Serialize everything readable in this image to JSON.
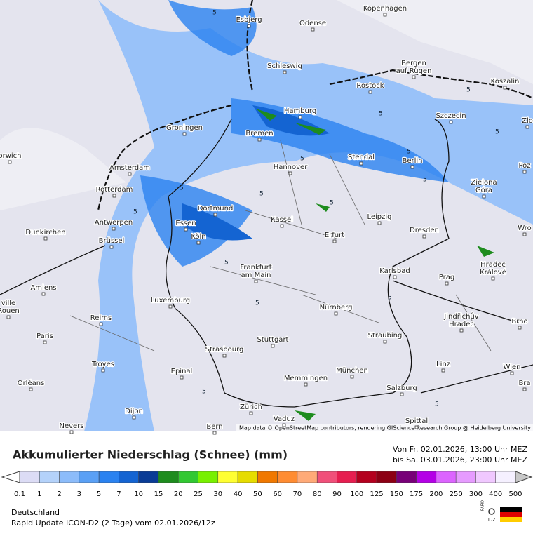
{
  "map": {
    "cities": [
      {
        "name": [
          "Esbjerg"
        ]
      },
      {
        "name": [
          "Odense"
        ]
      },
      {
        "name": [
          "Kopenhagen"
        ]
      },
      {
        "name": [
          "Schleswig"
        ]
      },
      {
        "name": [
          "Bergen",
          "auf Rügen"
        ]
      },
      {
        "name": [
          "Rostock"
        ]
      },
      {
        "name": [
          "Koszalin"
        ]
      },
      {
        "name": [
          "Hamburg"
        ]
      },
      {
        "name": [
          "Szczecin"
        ]
      },
      {
        "name": [
          "Groningen"
        ]
      },
      {
        "name": [
          "Bremen"
        ]
      },
      {
        "name": [
          "orwich"
        ]
      },
      {
        "name": [
          "Amsterdam"
        ]
      },
      {
        "name": [
          "Hannover"
        ]
      },
      {
        "name": [
          "Stendal"
        ]
      },
      {
        "name": [
          "Berlin"
        ]
      },
      {
        "name": [
          "Poz"
        ]
      },
      {
        "name": [
          "Zielona",
          "Góra"
        ]
      },
      {
        "name": [
          "Rotterdam"
        ]
      },
      {
        "name": [
          "Dortmund"
        ]
      },
      {
        "name": [
          "Leipzig"
        ]
      },
      {
        "name": [
          "Kassel"
        ]
      },
      {
        "name": [
          "Antwerpen"
        ]
      },
      {
        "name": [
          "Essen"
        ]
      },
      {
        "name": [
          "Dresden"
        ]
      },
      {
        "name": [
          "Dunkirchen"
        ]
      },
      {
        "name": [
          "Erfurt"
        ]
      },
      {
        "name": [
          "Brüssel"
        ]
      },
      {
        "name": [
          "Köln"
        ]
      },
      {
        "name": [
          "Wro"
        ]
      },
      {
        "name": [
          "Frankfurt",
          "am Main"
        ]
      },
      {
        "name": [
          "Karlsbad"
        ]
      },
      {
        "name": [
          "Hradec",
          "Králové"
        ]
      },
      {
        "name": [
          "Prag"
        ]
      },
      {
        "name": [
          "Amiens"
        ]
      },
      {
        "name": [
          "ville",
          "Rouen"
        ]
      },
      {
        "name": [
          "Luxemburg"
        ]
      },
      {
        "name": [
          "Nürnberg"
        ]
      },
      {
        "name": [
          "Jindřichův",
          "Hradec"
        ]
      },
      {
        "name": [
          "Reims"
        ]
      },
      {
        "name": [
          "Brno"
        ]
      },
      {
        "name": [
          "Paris"
        ]
      },
      {
        "name": [
          "Stuttgart"
        ]
      },
      {
        "name": [
          "Straubing"
        ]
      },
      {
        "name": [
          "Strasbourg"
        ]
      },
      {
        "name": [
          "Troyes"
        ]
      },
      {
        "name": [
          "Linz"
        ]
      },
      {
        "name": [
          "München"
        ]
      },
      {
        "name": [
          "Wien"
        ]
      },
      {
        "name": [
          "Epinal"
        ]
      },
      {
        "name": [
          "Memmingen"
        ]
      },
      {
        "name": [
          "Orléans"
        ]
      },
      {
        "name": [
          "Salzburg"
        ]
      },
      {
        "name": [
          "Zürich"
        ]
      },
      {
        "name": [
          "Dijon"
        ]
      },
      {
        "name": [
          "Vaduz"
        ]
      },
      {
        "name": [
          "Bern"
        ]
      },
      {
        "name": [
          "Spittal"
        ]
      },
      {
        "name": [
          "Nevers"
        ]
      },
      {
        "name": [
          "Zlo"
        ]
      },
      {
        "name": [
          "Bra"
        ]
      }
    ],
    "contour_labels": [
      5,
      5,
      5,
      5,
      5,
      5,
      5,
      5,
      5,
      5,
      5,
      5,
      5,
      5,
      5,
      5
    ],
    "attribution": "Map data © OpenStreetMap contributors, rendering GIScience Research Group @ Heidelberg University"
  },
  "legend": {
    "title": "Akkumulierter Niederschlag (Schnee) (mm)",
    "period": [
      "Von Fr. 02.01.2026, 13:00 Uhr MEZ",
      "bis Sa. 03.01.2026, 23:00 Uhr MEZ"
    ],
    "ticks": [
      {
        "value": 0.1,
        "label": "0.1"
      },
      1,
      2,
      3,
      5,
      7,
      10,
      15,
      20,
      25,
      30,
      40,
      50,
      60,
      70,
      80,
      90,
      100,
      125,
      150,
      175,
      200,
      250,
      300,
      400,
      500
    ],
    "colors": [
      "#dcdcf5",
      "#b4d2fa",
      "#8cbcfa",
      "#5aa0f5",
      "#2a82f0",
      "#1464d2",
      "#0a3c96",
      "#1e8c1e",
      "#32c832",
      "#78f000",
      "#ffff32",
      "#e6dc00",
      "#f07800",
      "#ff8c32",
      "#ffaa78",
      "#f0507a",
      "#e61e50",
      "#b4001e",
      "#8c0014",
      "#780078",
      "#b400e6",
      "#dc64ff",
      "#e69bff",
      "#f0c8ff",
      "#f5f0ff"
    ]
  },
  "footer": {
    "region": "Deutschland",
    "model": "Rapid Update ICON-D2 (2 Tage) vom 02.01.2026/12z",
    "logo": [
      "RAPID",
      "ID2"
    ]
  }
}
